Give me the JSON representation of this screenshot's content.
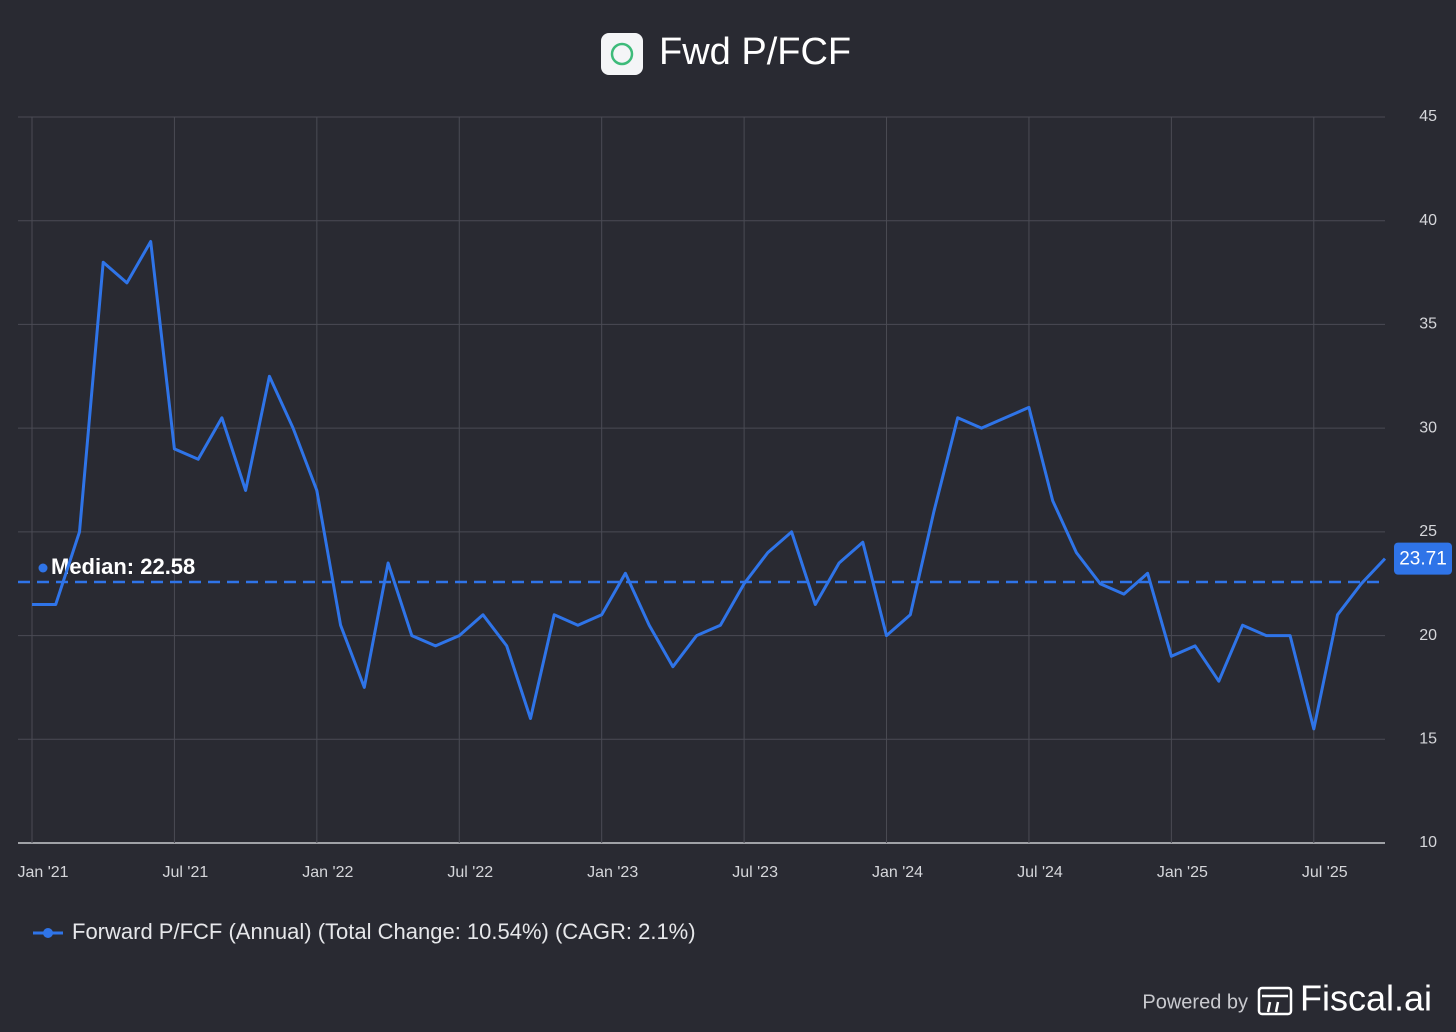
{
  "chart_data": {
    "type": "line",
    "title": "Fwd P/FCF",
    "x": [
      "2021-01",
      "2021-02",
      "2021-03",
      "2021-04",
      "2021-05",
      "2021-06",
      "2021-07",
      "2021-08",
      "2021-09",
      "2021-10",
      "2021-11",
      "2021-12",
      "2022-01",
      "2022-02",
      "2022-03",
      "2022-04",
      "2022-05",
      "2022-06",
      "2022-07",
      "2022-08",
      "2022-09",
      "2022-10",
      "2022-11",
      "2022-12",
      "2023-01",
      "2023-02",
      "2023-03",
      "2023-04",
      "2023-05",
      "2023-06",
      "2023-07",
      "2023-08",
      "2023-09",
      "2023-10",
      "2023-11",
      "2023-12",
      "2024-01",
      "2024-02",
      "2024-03",
      "2024-04",
      "2024-05",
      "2024-06",
      "2024-07",
      "2024-08",
      "2024-09",
      "2024-10",
      "2024-11",
      "2024-12",
      "2025-01",
      "2025-02",
      "2025-03",
      "2025-04",
      "2025-05",
      "2025-06",
      "2025-07",
      "2025-08",
      "2025-09",
      "2025-10"
    ],
    "series": [
      {
        "name": "Forward P/FCF (Annual) (Total Change: 10.54%) (CAGR: 2.1%)",
        "color": "#2f74e8",
        "values": [
          21.5,
          21.5,
          25,
          38,
          37,
          39,
          29,
          28.5,
          30.5,
          27,
          32.5,
          30,
          27,
          20.5,
          17.5,
          23.5,
          20,
          19.5,
          20,
          21,
          19.5,
          16,
          21,
          20.5,
          21,
          23,
          20.5,
          18.5,
          20,
          20.5,
          22.5,
          24,
          25,
          21.5,
          23.5,
          24.5,
          20,
          21,
          26,
          30.5,
          30,
          30.5,
          31,
          26.5,
          24,
          22.5,
          22,
          23,
          19,
          19.5,
          17.8,
          20.5,
          20,
          20,
          15.5,
          21,
          22.5,
          23.71
        ]
      }
    ],
    "xlim": [
      "2021-01",
      "2025-10"
    ],
    "xticks": [
      {
        "value": "2021-01",
        "label": "Jan '21"
      },
      {
        "value": "2021-07",
        "label": "Jul '21"
      },
      {
        "value": "2022-01",
        "label": "Jan '22"
      },
      {
        "value": "2022-07",
        "label": "Jul '22"
      },
      {
        "value": "2023-01",
        "label": "Jan '23"
      },
      {
        "value": "2023-07",
        "label": "Jul '23"
      },
      {
        "value": "2024-01",
        "label": "Jan '24"
      },
      {
        "value": "2024-07",
        "label": "Jul '24"
      },
      {
        "value": "2025-01",
        "label": "Jan '25"
      },
      {
        "value": "2025-07",
        "label": "Jul '25"
      }
    ],
    "ylim": [
      10,
      45
    ],
    "yticks": [
      10,
      15,
      20,
      25,
      30,
      35,
      40,
      45
    ],
    "grid": true,
    "median": {
      "value": 22.58,
      "label": "Median: 22.58"
    },
    "footer": {
      "prefix": "Powered by",
      "brand": "Fiscal.ai"
    }
  }
}
